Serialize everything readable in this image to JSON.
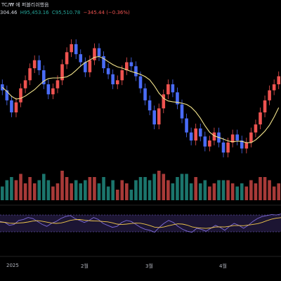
{
  "header": {
    "symbol_line": "TC/₩ 에 퍼블리쉬했음",
    "ohlc": [
      {
        "text": "304.46",
        "tone": "neutral"
      },
      {
        "text": "H95,453.16",
        "tone": "up"
      },
      {
        "text": "C95,510.78",
        "tone": "up"
      },
      {
        "text": "−345.44 (−0.36%)",
        "tone": "down"
      }
    ]
  },
  "x_axis_labels": [
    "2025",
    "2월",
    "3월",
    "4월"
  ],
  "colors": {
    "up": "#26a69a",
    "down": "#ef5350",
    "candle_body_up": "#ef5350",
    "candle_body_down": "#4a6cf7",
    "ma_line": "#f2e38b",
    "osc_line": "#7e6bd8",
    "osc_signal": "#f2c94c",
    "osc_band_fill": "#1c1533",
    "background": "#000000"
  },
  "chart_data": {
    "type": "candlestick",
    "price_series": [
      {
        "o": 1000,
        "c": 985
      },
      {
        "o": 985,
        "c": 960
      },
      {
        "o": 960,
        "c": 930
      },
      {
        "o": 930,
        "c": 955
      },
      {
        "o": 955,
        "c": 990
      },
      {
        "o": 990,
        "c": 1010
      },
      {
        "o": 1010,
        "c": 1040
      },
      {
        "o": 1040,
        "c": 1060
      },
      {
        "o": 1060,
        "c": 1035
      },
      {
        "o": 1035,
        "c": 1000
      },
      {
        "o": 1000,
        "c": 975
      },
      {
        "o": 975,
        "c": 990
      },
      {
        "o": 990,
        "c": 1010
      },
      {
        "o": 1010,
        "c": 1050
      },
      {
        "o": 1050,
        "c": 1080
      },
      {
        "o": 1080,
        "c": 1100
      },
      {
        "o": 1100,
        "c": 1075
      },
      {
        "o": 1075,
        "c": 1055
      },
      {
        "o": 1055,
        "c": 1030
      },
      {
        "o": 1030,
        "c": 1060
      },
      {
        "o": 1060,
        "c": 1090
      },
      {
        "o": 1090,
        "c": 1070
      },
      {
        "o": 1070,
        "c": 1040
      },
      {
        "o": 1040,
        "c": 1025
      },
      {
        "o": 1025,
        "c": 1000
      },
      {
        "o": 1000,
        "c": 1010
      },
      {
        "o": 1010,
        "c": 1035
      },
      {
        "o": 1035,
        "c": 1055
      },
      {
        "o": 1055,
        "c": 1045
      },
      {
        "o": 1045,
        "c": 1020
      },
      {
        "o": 1020,
        "c": 990
      },
      {
        "o": 990,
        "c": 960
      },
      {
        "o": 960,
        "c": 935
      },
      {
        "o": 935,
        "c": 900
      },
      {
        "o": 900,
        "c": 940
      },
      {
        "o": 940,
        "c": 975
      },
      {
        "o": 975,
        "c": 1000
      },
      {
        "o": 1000,
        "c": 980
      },
      {
        "o": 980,
        "c": 950
      },
      {
        "o": 950,
        "c": 915
      },
      {
        "o": 915,
        "c": 880
      },
      {
        "o": 880,
        "c": 860
      },
      {
        "o": 860,
        "c": 890
      },
      {
        "o": 890,
        "c": 870
      },
      {
        "o": 870,
        "c": 845
      },
      {
        "o": 845,
        "c": 860
      },
      {
        "o": 860,
        "c": 880
      },
      {
        "o": 880,
        "c": 855
      },
      {
        "o": 855,
        "c": 830
      },
      {
        "o": 830,
        "c": 855
      },
      {
        "o": 855,
        "c": 875
      },
      {
        "o": 875,
        "c": 860
      },
      {
        "o": 860,
        "c": 840
      },
      {
        "o": 840,
        "c": 855
      },
      {
        "o": 855,
        "c": 880
      },
      {
        "o": 880,
        "c": 900
      },
      {
        "o": 900,
        "c": 930
      },
      {
        "o": 930,
        "c": 960
      },
      {
        "o": 960,
        "c": 985
      },
      {
        "o": 985,
        "c": 1000
      },
      {
        "o": 1000,
        "c": 1020
      }
    ],
    "oscillator": [
      0.2,
      0.1,
      -0.2,
      -0.1,
      0.3,
      0.4,
      0.6,
      0.5,
      0.2,
      -0.1,
      -0.3,
      0.0,
      0.2,
      0.5,
      0.7,
      0.8,
      0.5,
      0.3,
      0.1,
      0.3,
      0.6,
      0.4,
      0.0,
      -0.2,
      -0.4,
      -0.3,
      0.1,
      0.3,
      0.2,
      -0.1,
      -0.4,
      -0.6,
      -0.7,
      -0.9,
      -0.4,
      0.0,
      0.3,
      0.1,
      -0.3,
      -0.6,
      -0.8,
      -0.9,
      -0.5,
      -0.6,
      -0.8,
      -0.5,
      -0.2,
      -0.4,
      -0.7,
      -0.3,
      0.0,
      -0.2,
      -0.5,
      -0.2,
      0.2,
      0.5,
      0.7,
      0.8,
      0.9,
      0.85,
      0.95
    ],
    "x_tick_labels": [
      "2025",
      "2월",
      "3월",
      "4월"
    ],
    "grid": false
  }
}
